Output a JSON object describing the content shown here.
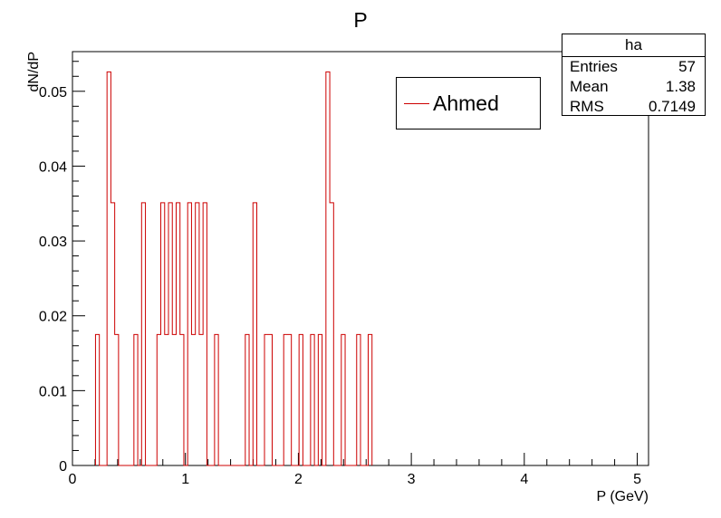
{
  "chart_data": {
    "type": "bar",
    "title": "P",
    "xlabel": "P (GeV)",
    "ylabel": "dN/dP",
    "xlim": [
      0,
      5.1
    ],
    "ylim": [
      0,
      0.0553
    ],
    "x_ticks": [
      0,
      1,
      2,
      3,
      4,
      5
    ],
    "y_ticks": [
      0,
      0.01,
      0.02,
      0.03,
      0.04,
      0.05
    ],
    "x_tick_labels": [
      "0",
      "1",
      "2",
      "3",
      "4",
      "5"
    ],
    "y_tick_labels": [
      "0",
      "0.01",
      "0.02",
      "0.03",
      "0.04",
      "0.05"
    ],
    "bin_width": 0.034,
    "line_color": "#cc0000",
    "series": [
      {
        "name": "Ahmed",
        "bin_lows": [
          0.204,
          0.306,
          0.34,
          0.374,
          0.544,
          0.612,
          0.748,
          0.782,
          0.816,
          0.85,
          0.884,
          0.918,
          0.952,
          1.02,
          1.054,
          1.088,
          1.122,
          1.156,
          1.258,
          1.53,
          1.598,
          1.7,
          1.734,
          1.87,
          1.904,
          2.006,
          2.108,
          2.176,
          2.244,
          2.278,
          2.38,
          2.516,
          2.618
        ],
        "values": [
          0.0175,
          0.0526,
          0.0351,
          0.0175,
          0.0175,
          0.0351,
          0.0175,
          0.0351,
          0.0175,
          0.0351,
          0.0175,
          0.0351,
          0.0175,
          0.0351,
          0.0175,
          0.0351,
          0.0175,
          0.0351,
          0.0175,
          0.0175,
          0.0351,
          0.0175,
          0.0175,
          0.0175,
          0.0175,
          0.0175,
          0.0175,
          0.0175,
          0.0526,
          0.0351,
          0.0175,
          0.0175,
          0.0175
        ]
      }
    ],
    "legend": {
      "position": "top-right",
      "entries": [
        "Ahmed"
      ]
    },
    "stats_box": {
      "name": "ha",
      "rows": [
        {
          "label": "Entries",
          "value": "57"
        },
        {
          "label": "Mean",
          "value": "1.38"
        },
        {
          "label": "RMS",
          "value": "0.7149"
        }
      ]
    }
  }
}
